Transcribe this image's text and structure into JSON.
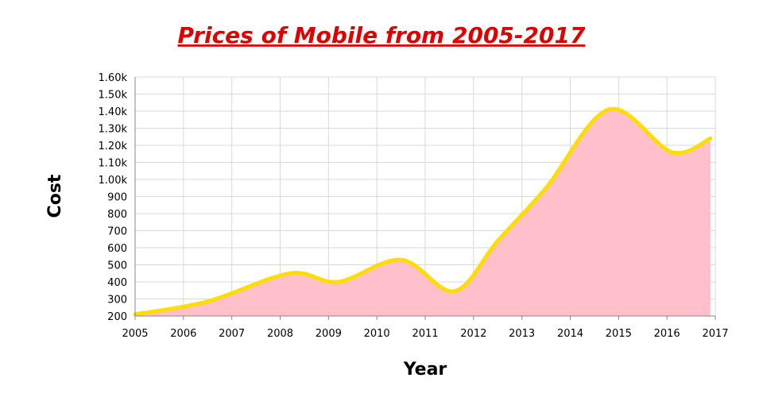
{
  "colors": {
    "title": "#e00000",
    "line": "#ffdd00",
    "area": "#ffc0cb",
    "grid": "#d9d9d9",
    "axis": "#888888"
  },
  "chart_data": {
    "type": "area",
    "title": "Prices of Mobile from 2005-2017",
    "xlabel": "Year",
    "ylabel": "Cost",
    "xlim": [
      2005,
      2017
    ],
    "ylim": [
      200,
      1600
    ],
    "grid": true,
    "x_ticks": [
      "2005",
      "2006",
      "2007",
      "2008",
      "2009",
      "2010",
      "2011",
      "2012",
      "2013",
      "2014",
      "2015",
      "2016",
      "2017"
    ],
    "y_ticks": [
      {
        "value": 200,
        "label": "200"
      },
      {
        "value": 300,
        "label": "300"
      },
      {
        "value": 400,
        "label": "400"
      },
      {
        "value": 500,
        "label": "500"
      },
      {
        "value": 600,
        "label": "600"
      },
      {
        "value": 700,
        "label": "700"
      },
      {
        "value": 800,
        "label": "800"
      },
      {
        "value": 900,
        "label": "900"
      },
      {
        "value": 1000,
        "label": "1.00k"
      },
      {
        "value": 1100,
        "label": "1.10k"
      },
      {
        "value": 1200,
        "label": "1.20k"
      },
      {
        "value": 1300,
        "label": "1.30k"
      },
      {
        "value": 1400,
        "label": "1.40k"
      },
      {
        "value": 1500,
        "label": "1.50k"
      },
      {
        "value": 1600,
        "label": "1.60k"
      }
    ],
    "series": [
      {
        "points": [
          {
            "x": 2005.0,
            "y": 210
          },
          {
            "x": 2006.5,
            "y": 285
          },
          {
            "x": 2008.2,
            "y": 450
          },
          {
            "x": 2009.2,
            "y": 400
          },
          {
            "x": 2010.5,
            "y": 530
          },
          {
            "x": 2011.6,
            "y": 345
          },
          {
            "x": 2012.5,
            "y": 640
          },
          {
            "x": 2013.5,
            "y": 950
          },
          {
            "x": 2014.8,
            "y": 1410
          },
          {
            "x": 2016.1,
            "y": 1160
          },
          {
            "x": 2016.9,
            "y": 1240
          }
        ]
      }
    ]
  }
}
